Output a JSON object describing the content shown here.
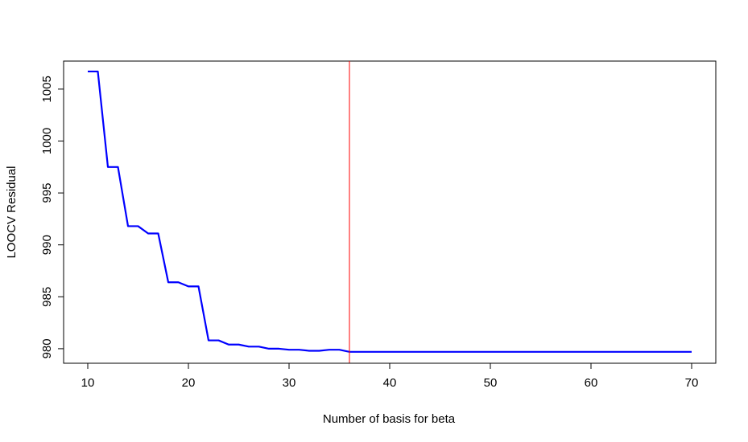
{
  "chart_data": {
    "type": "line",
    "title": "",
    "xlabel": "Number of basis for beta",
    "ylabel": "LOOCV Residual",
    "xlim": [
      7.6,
      72.4
    ],
    "ylim": [
      978.6,
      1007.7
    ],
    "xticks": [
      10,
      20,
      30,
      40,
      50,
      60,
      70
    ],
    "yticks": [
      980,
      985,
      990,
      995,
      1000,
      1005
    ],
    "xtick_labels": [
      "10",
      "20",
      "30",
      "40",
      "50",
      "60",
      "70"
    ],
    "ytick_labels": [
      "980",
      "985",
      "990",
      "995",
      "1000",
      "1005"
    ],
    "grid": false,
    "series": [
      {
        "color": "#0000ff",
        "x": [
          10,
          11,
          12,
          13,
          14,
          15,
          16,
          17,
          18,
          19,
          20,
          21,
          22,
          23,
          24,
          25,
          26,
          27,
          28,
          29,
          30,
          31,
          32,
          33,
          34,
          35,
          36,
          37,
          38,
          39,
          40,
          41,
          42,
          43,
          44,
          45,
          46,
          47,
          48,
          49,
          50,
          51,
          52,
          53,
          54,
          55,
          56,
          57,
          58,
          59,
          60,
          61,
          62,
          63,
          64,
          65,
          66,
          67,
          68,
          69,
          70
        ],
        "y": [
          1006.7,
          1006.7,
          997.5,
          997.5,
          991.8,
          991.8,
          991.1,
          991.1,
          986.4,
          986.4,
          986.0,
          986.0,
          980.8,
          980.8,
          980.4,
          980.4,
          980.2,
          980.2,
          980.0,
          980.0,
          979.9,
          979.9,
          979.8,
          979.8,
          979.9,
          979.9,
          979.7,
          979.7,
          979.7,
          979.7,
          979.7,
          979.7,
          979.7,
          979.7,
          979.7,
          979.7,
          979.7,
          979.7,
          979.7,
          979.7,
          979.7,
          979.7,
          979.7,
          979.7,
          979.7,
          979.7,
          979.7,
          979.7,
          979.7,
          979.7,
          979.7,
          979.7,
          979.7,
          979.7,
          979.7,
          979.7,
          979.7,
          979.7,
          979.7,
          979.7,
          979.7
        ]
      }
    ],
    "vline": {
      "x": 36,
      "color": "#ff0000"
    }
  }
}
